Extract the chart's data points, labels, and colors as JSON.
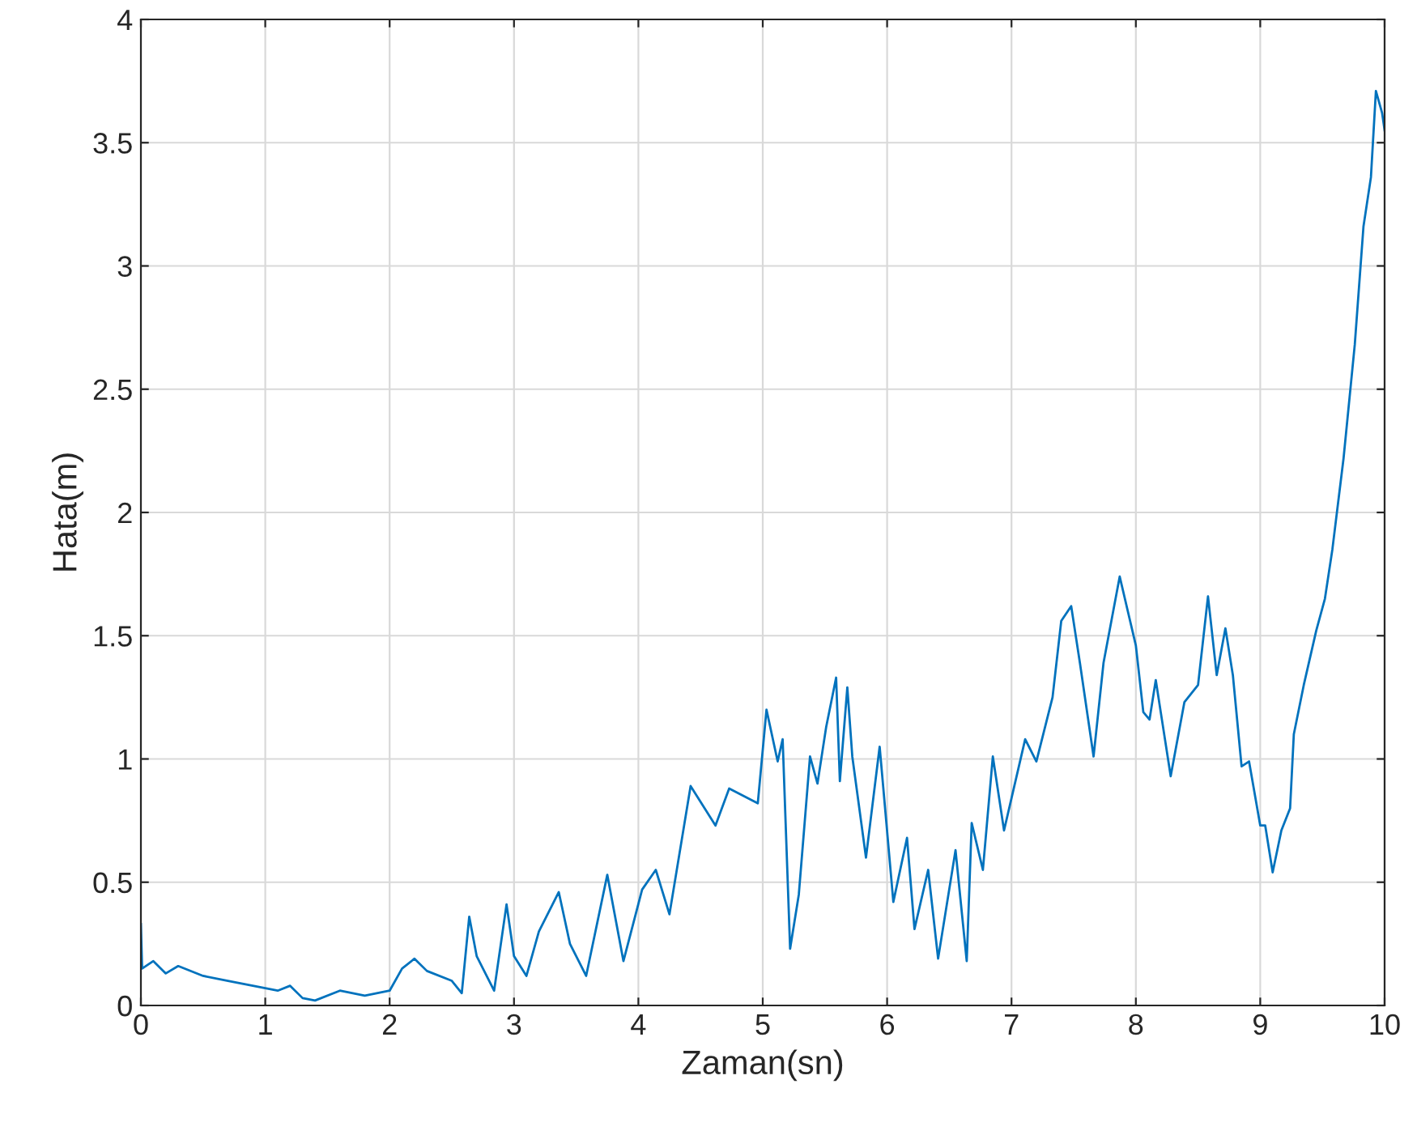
{
  "chart_data": {
    "type": "line",
    "xlabel": "Zaman(sn)",
    "ylabel": "Hata(m)",
    "xlim": [
      0,
      10
    ],
    "ylim": [
      0,
      4
    ],
    "xticks": [
      0,
      1,
      2,
      3,
      4,
      5,
      6,
      7,
      8,
      9,
      10
    ],
    "yticks": [
      0,
      {
        "value": 0.5,
        "label": "0.5"
      },
      1,
      {
        "value": 1.5,
        "label": "1.5"
      },
      2,
      {
        "value": 2.5,
        "label": "2.5"
      },
      3,
      {
        "value": 3.5,
        "label": "3.5"
      },
      4
    ],
    "grid": true,
    "marker": "none",
    "line_style": "solid",
    "series": [
      {
        "color": "#0072bd",
        "x": [
          0,
          0.01,
          0.1,
          0.2,
          0.3,
          0.5,
          0.7,
          0.9,
          1.0,
          1.1,
          1.2,
          1.3,
          1.4,
          1.6,
          1.8,
          2.0,
          2.1,
          2.2,
          2.3,
          2.5,
          2.58,
          2.64,
          2.7,
          2.84,
          2.94,
          3.0,
          3.1,
          3.2,
          3.36,
          3.45,
          3.58,
          3.75,
          3.88,
          4.03,
          4.14,
          4.25,
          4.42,
          4.62,
          4.73,
          4.96,
          5.03,
          5.12,
          5.16,
          5.22,
          5.29,
          5.38,
          5.44,
          5.51,
          5.59,
          5.62,
          5.68,
          5.72,
          5.83,
          5.94,
          6.05,
          6.16,
          6.22,
          6.33,
          6.41,
          6.55,
          6.64,
          6.68,
          6.77,
          6.85,
          6.94,
          7.11,
          7.2,
          7.33,
          7.4,
          7.48,
          7.55,
          7.66,
          7.74,
          7.87,
          8.0,
          8.06,
          8.11,
          8.16,
          8.2,
          8.28,
          8.39,
          8.5,
          8.58,
          8.65,
          8.72,
          8.78,
          8.85,
          8.91,
          9.0,
          9.04,
          9.1,
          9.17,
          9.24,
          9.27,
          9.35,
          9.45,
          9.52,
          9.58,
          9.67,
          9.76,
          9.83,
          9.89,
          9.93,
          9.98,
          10
        ],
        "values": [
          0.33,
          0.15,
          0.18,
          0.13,
          0.16,
          0.12,
          0.1,
          0.08,
          0.07,
          0.06,
          0.08,
          0.03,
          0.02,
          0.06,
          0.04,
          0.06,
          0.15,
          0.19,
          0.14,
          0.1,
          0.05,
          0.36,
          0.2,
          0.06,
          0.41,
          0.2,
          0.12,
          0.3,
          0.46,
          0.25,
          0.12,
          0.53,
          0.18,
          0.47,
          0.55,
          0.37,
          0.89,
          0.73,
          0.88,
          0.82,
          1.2,
          0.99,
          1.08,
          0.23,
          0.45,
          1.01,
          0.9,
          1.13,
          1.33,
          0.91,
          1.29,
          1.01,
          0.6,
          1.05,
          0.42,
          0.68,
          0.31,
          0.55,
          0.19,
          0.63,
          0.18,
          0.74,
          0.55,
          1.01,
          0.71,
          1.08,
          0.99,
          1.25,
          1.56,
          1.62,
          1.39,
          1.01,
          1.39,
          1.74,
          1.46,
          1.19,
          1.16,
          1.32,
          1.19,
          0.93,
          1.23,
          1.3,
          1.66,
          1.34,
          1.53,
          1.34,
          0.97,
          0.99,
          0.73,
          0.73,
          0.54,
          0.71,
          0.8,
          1.1,
          1.3,
          1.52,
          1.65,
          1.85,
          2.22,
          2.68,
          3.16,
          3.36,
          3.71,
          3.62,
          3.55
        ]
      }
    ]
  }
}
